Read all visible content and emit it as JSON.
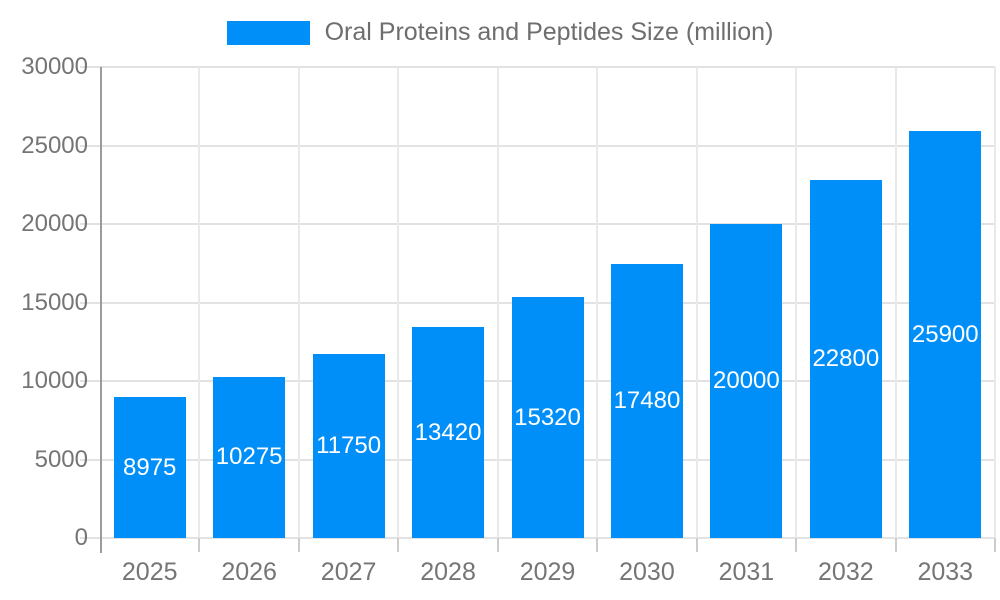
{
  "chart_data": {
    "type": "bar",
    "legend": "Oral Proteins and Peptides Size (million)",
    "legend_position": "top-center",
    "categories": [
      "2025",
      "2026",
      "2027",
      "2028",
      "2029",
      "2030",
      "2031",
      "2032",
      "2033"
    ],
    "values": [
      8975,
      10275,
      11750,
      13420,
      15320,
      17480,
      20000,
      22800,
      25900
    ],
    "xlabel": "",
    "ylabel": "",
    "ylim": [
      0,
      30000
    ],
    "yticks": [
      0,
      5000,
      10000,
      15000,
      20000,
      25000,
      30000
    ],
    "grid": "on",
    "value_labels": "white, centered inside bars"
  },
  "colors": {
    "bar": "#008ff8",
    "bar_label_text": "#ffffff",
    "axis_text": "#757575",
    "legend_text": "#6e6e6e",
    "gridline": "#e2e2e2",
    "axis_line": "#9b9b9b",
    "background": "#ffffff"
  }
}
